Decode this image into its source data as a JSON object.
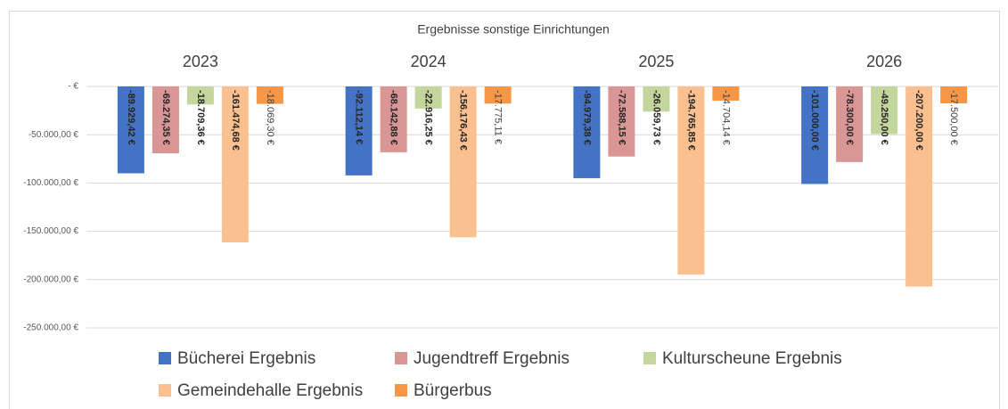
{
  "chart_data": {
    "type": "bar",
    "title": "Ergebnisse sonstige Einrichtungen",
    "categories": [
      "2023",
      "2024",
      "2025",
      "2026"
    ],
    "series": [
      {
        "name": "Bücherei Ergebnis",
        "color": "#4472c4",
        "values": [
          -89929.42,
          -92112.14,
          -94979.38,
          -101000.0
        ],
        "value_labels": [
          "-89.929,42 €",
          "-92.112,14 €",
          "-94.979,38 €",
          "-101.000,00 €"
        ]
      },
      {
        "name": "Jugendtreff Ergebnis",
        "color": "#d99694",
        "values": [
          -69274.35,
          -68142.88,
          -72588.15,
          -78300.0
        ],
        "value_labels": [
          "-69.274,35 €",
          "-68.142,88 €",
          "-72.588,15 €",
          "-78.300,00 €"
        ]
      },
      {
        "name": "Kulturscheune Ergebnis",
        "color": "#c3d69b",
        "values": [
          -18709.36,
          -22916.25,
          -26059.73,
          -49250.0
        ],
        "value_labels": [
          "-18.709,36 €",
          "-22.916,25 €",
          "-26.059,73 €",
          "-49.250,00 €"
        ]
      },
      {
        "name": "Gemeindehalle Ergebnis",
        "color": "#fac090",
        "values": [
          -161474.68,
          -156176.43,
          -194765.85,
          -207200.0
        ],
        "value_labels": [
          "-161.474,68 €",
          "-156.176,43 €",
          "-194.765,85 €",
          "-207.200,00 €"
        ]
      },
      {
        "name": "Bürgerbus",
        "color": "#f79646",
        "values": [
          -18069.3,
          -17775.11,
          -14704.14,
          -17500.0
        ],
        "value_labels": [
          "-18.069,30 €",
          "-17.775,11 €",
          "-14.704,14 €",
          "-17.500,00 €"
        ]
      }
    ],
    "ylim": [
      -250000,
      0
    ],
    "yticks": [
      {
        "value": 0,
        "label": "-   €"
      },
      {
        "value": -50000,
        "label": "-50.000,00 €"
      },
      {
        "value": -100000,
        "label": "-100.000,00 €"
      },
      {
        "value": -150000,
        "label": "-150.000,00 €"
      },
      {
        "value": -200000,
        "label": "-200.000,00 €"
      },
      {
        "value": -250000,
        "label": "-250.000,00 €"
      }
    ],
    "grid": true
  }
}
